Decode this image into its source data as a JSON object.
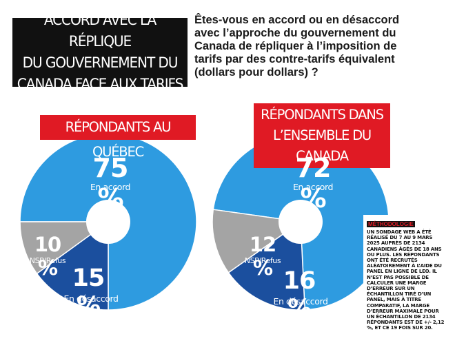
{
  "header": {
    "title_lines": [
      "ACCORD AVEC LA RÉPLIQUE",
      "DU GOUVERNEMENT DU",
      "CANADA FACE AUX TARIFS"
    ],
    "question": "Êtes-vous en accord ou en désaccord avec l’approche du gouvernement du Canada de répliquer à l’imposition de tarifs par des contre-tarifs équivalent (dollars pour dollars) ?"
  },
  "colors": {
    "accord": "#2e9be0",
    "desaccord": "#1b4f9e",
    "nsp": "#a4a4a4",
    "badge": "#e01a24",
    "title_bg": "#111111"
  },
  "chart_data": [
    {
      "type": "pie",
      "title": "RÉPONDANTS AU QUÉBEC",
      "slices": [
        {
          "label": "En accord",
          "value": 75,
          "display": "75 %"
        },
        {
          "label": "En désaccord",
          "value": 15,
          "display": "15 %"
        },
        {
          "label": "NSP/Refus",
          "value": 10,
          "display": "10 %"
        }
      ]
    },
    {
      "type": "pie",
      "title_lines": [
        "RÉPONDANTS DANS",
        "L’ENSEMBLE DU CANADA"
      ],
      "slices": [
        {
          "label": "En accord",
          "value": 72,
          "display": "72 %"
        },
        {
          "label": "En désaccord",
          "value": 16,
          "display": "16 %"
        },
        {
          "label": "NSP/Refus",
          "value": 12,
          "display": "12 %"
        }
      ]
    }
  ],
  "methodology": {
    "title": "MÉTHODOLOGIE",
    "text": "UN SONDAGE WEB A ÉTÉ RÉALISÉ DU 7 AU 9 MARS 2025 AUPRÈS DE 2134 CANADIENS ÂGÉS DE 18 ANS OU PLUS. LES RÉPONDANTS ONT ÉTÉ RECRUTÉS ALÉATOIREMENT À L’AIDE DU PANEL EN LIGNE DE LEO. IL N’EST PAS POSSIBLE DE CALCULER UNE MARGE D’ERREUR SUR UN ÉCHANTILLON TIRÉ D’UN PANEL, MAIS À TITRE COMPARATIF, LA MARGE D’ERREUR MAXIMALE POUR UN ÉCHANTILLON DE 2134 RÉPONDANTS EST DE +/- 2,12 %, ET CE 19 FOIS SUR 20."
  }
}
